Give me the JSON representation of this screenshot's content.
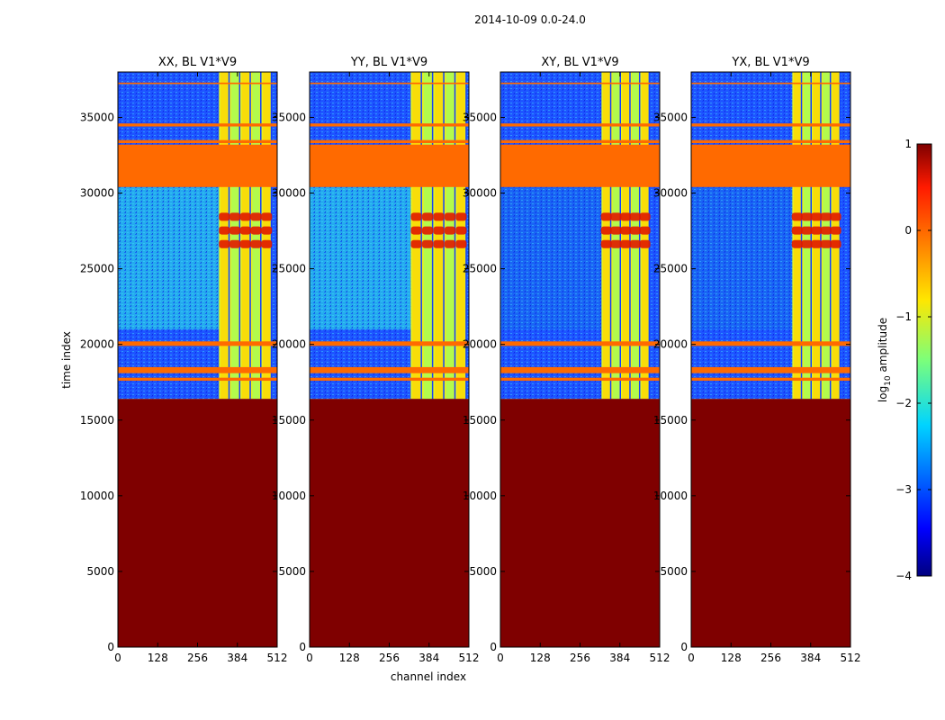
{
  "chart_data": {
    "type": "heatmap",
    "suptitle": "2014-10-09 0.0-24.0",
    "xlabel": "channel index",
    "ylabel": "time index",
    "xlim": [
      0,
      512
    ],
    "ylim": [
      0,
      38000
    ],
    "x_ticks": [
      0,
      128,
      256,
      384,
      512
    ],
    "y_ticks": [
      0,
      5000,
      10000,
      15000,
      20000,
      25000,
      30000,
      35000
    ],
    "panels": [
      {
        "title": "XX, BL V1*V9",
        "band_start": 325,
        "band_end": 495,
        "red_spots": true,
        "side_color": "#28c8e8"
      },
      {
        "title": "YY, BL V1*V9",
        "band_start": 325,
        "band_end": 505,
        "red_spots": true,
        "side_color": "#28c8e8"
      },
      {
        "title": "XY, BL V1*V9",
        "band_start": 325,
        "band_end": 480,
        "red_spots": true,
        "side_color": "#1a6cf0"
      },
      {
        "title": "YX, BL V1*V9",
        "band_start": 325,
        "band_end": 480,
        "red_spots": true,
        "side_color": "#1a6cf0"
      }
    ],
    "flagged_time_ranges": [
      [
        0,
        16400
      ],
      [
        30400,
        33200
      ],
      [
        33300,
        33500
      ],
      [
        34400,
        34600
      ],
      [
        37200,
        37300
      ],
      [
        19900,
        20200
      ],
      [
        18100,
        18500
      ],
      [
        17600,
        17800
      ]
    ],
    "colorbar": {
      "label": "log10 amplitude",
      "label_main": "log",
      "label_sub": "10",
      "label_tail": " amplitude",
      "min": -4,
      "max": 1,
      "ticks": [
        "1",
        "0",
        "−1",
        "−2",
        "−3",
        "−4"
      ],
      "tick_values": [
        1,
        0,
        -1,
        -2,
        -3,
        -4
      ],
      "colormap": "jet"
    }
  }
}
